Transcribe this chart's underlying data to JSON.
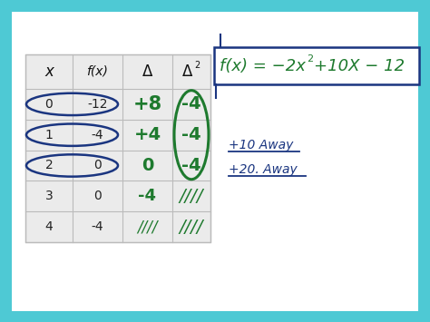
{
  "bg_outer": "#4ec9d4",
  "bg_inner": "#ffffff",
  "table_x": [
    "0",
    "1",
    "2",
    "3",
    "4"
  ],
  "table_fx": [
    "-12",
    "-4",
    "0",
    "0",
    "-4"
  ],
  "table_delta": [
    "+8",
    "+4",
    "0",
    "-4",
    "////"
  ],
  "table_delta2": [
    "-4",
    "-4",
    "-4",
    "////",
    "////"
  ],
  "col_headers_plain": [
    "x",
    "f(x)",
    "Δ",
    "Δ"
  ],
  "dark_blue": "#1a3580",
  "green": "#1e7a2e",
  "gray_line": "#bbbbbb",
  "table_bg": "#ebebeb",
  "note1": "+10 Away",
  "note2": "+20. Away",
  "formula_left": "f(x) = −2x",
  "formula_right": "+10X − 12",
  "sup2": "2"
}
